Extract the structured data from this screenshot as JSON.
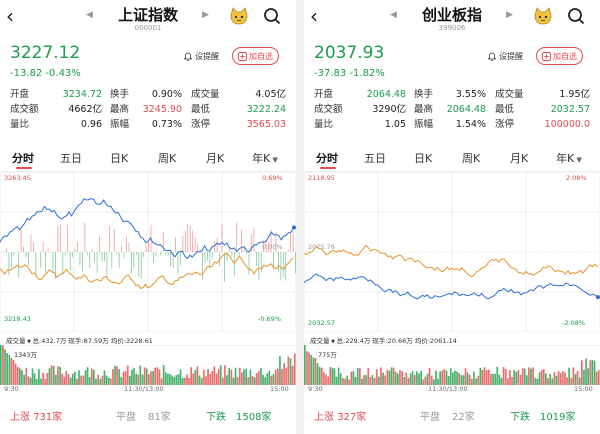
{
  "colors": {
    "up": "#e34a4a",
    "down": "#1a9d4a",
    "orange": "#e8922a",
    "blue": "#2b6fd6",
    "grid": "#eeeeee"
  },
  "panels": [
    {
      "nav": {
        "title": "上证指数",
        "code": "000001"
      },
      "price": "3227.12",
      "change": "-13.82  -0.43%",
      "alert_label": "设提醒",
      "fav_label": "加自选",
      "stats": [
        [
          {
            "label": "开盘",
            "value": "3234.72",
            "tone": "green"
          },
          {
            "label": "换手",
            "value": "0.90%",
            "tone": "black"
          },
          {
            "label": "成交量",
            "value": "4.05亿",
            "tone": "black"
          }
        ],
        [
          {
            "label": "成交额",
            "value": "4662亿",
            "tone": "black"
          },
          {
            "label": "最高",
            "value": "3245.90",
            "tone": "red"
          },
          {
            "label": "最低",
            "value": "3222.24",
            "tone": "green"
          }
        ],
        [
          {
            "label": "量比",
            "value": "0.96",
            "tone": "black"
          },
          {
            "label": "振幅",
            "value": "0.73%",
            "tone": "black"
          },
          {
            "label": "涨停",
            "value": "3565.03",
            "tone": "red"
          }
        ]
      ],
      "tabs": [
        "分时",
        "五日",
        "日K",
        "周K",
        "月K",
        "年K"
      ],
      "chart": {
        "ymax": "3263.45",
        "ymin": "3218.43",
        "pmax": "0.69%",
        "pmin": "-0.69%",
        "pref": "3240.94",
        "pref_pct": "0.00%"
      },
      "vol": {
        "label": "成交量",
        "amount": "总:432.7万",
        "current": "现手:87.59万",
        "avg": "均价:3228.61",
        "max": "1343万"
      },
      "times": [
        "9:30",
        "11:30/13:00",
        "15:00"
      ],
      "breadth": {
        "up": "上涨",
        "up_n": "731家",
        "flat": "平盘",
        "flat_n": "81家",
        "down": "下跌",
        "down_n": "1508家"
      }
    },
    {
      "nav": {
        "title": "创业板指",
        "code": "399006"
      },
      "price": "2037.93",
      "change": "-37.83  -1.82%",
      "alert_label": "设提醒",
      "fav_label": "加自选",
      "stats": [
        [
          {
            "label": "开盘",
            "value": "2064.48",
            "tone": "green"
          },
          {
            "label": "换手",
            "value": "3.55%",
            "tone": "black"
          },
          {
            "label": "成交量",
            "value": "1.95亿",
            "tone": "black"
          }
        ],
        [
          {
            "label": "成交额",
            "value": "3290亿",
            "tone": "black"
          },
          {
            "label": "最高",
            "value": "2064.48",
            "tone": "green"
          },
          {
            "label": "最低",
            "value": "2032.57",
            "tone": "green"
          }
        ],
        [
          {
            "label": "量比",
            "value": "1.05",
            "tone": "black"
          },
          {
            "label": "振幅",
            "value": "1.54%",
            "tone": "black"
          },
          {
            "label": "涨停",
            "value": "100000.0",
            "tone": "red"
          }
        ]
      ],
      "tabs": [
        "分时",
        "五日",
        "日K",
        "周K",
        "月K",
        "年K"
      ],
      "chart": {
        "ymax": "2118.95",
        "ymin": "2032.57",
        "pmax": "2.08%",
        "pmin": "-2.08%",
        "pref": "2075.76",
        "pref_pct": ""
      },
      "vol": {
        "label": "成交量",
        "amount": "总:229.4万",
        "current": "现手:20.66万",
        "avg": "均价:2061.14",
        "max": "775万"
      },
      "times": [
        "9:30",
        "11:30/13:00",
        "15:00"
      ],
      "breadth": {
        "up": "上涨",
        "up_n": "327家",
        "flat": "平盘",
        "flat_n": "22家",
        "down": "下跌",
        "down_n": "1019家"
      }
    }
  ]
}
